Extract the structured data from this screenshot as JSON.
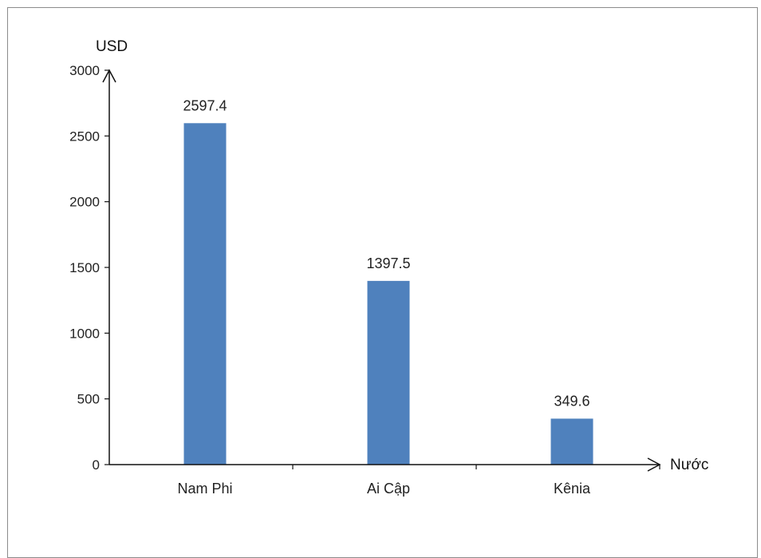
{
  "chart_data": {
    "type": "bar",
    "categories": [
      "Nam Phi",
      "Ai Cập",
      "Kênia"
    ],
    "values": [
      2597.4,
      1397.5,
      349.6
    ],
    "value_labels": [
      "2597.4",
      "1397.5",
      "349.6"
    ],
    "xlabel": "Nước",
    "ylabel": "USD",
    "ylim": [
      0,
      3000
    ],
    "yticks": [
      0,
      500,
      1000,
      1500,
      2000,
      2500,
      3000
    ],
    "grid": false,
    "bar_color": "#4f81bd"
  }
}
